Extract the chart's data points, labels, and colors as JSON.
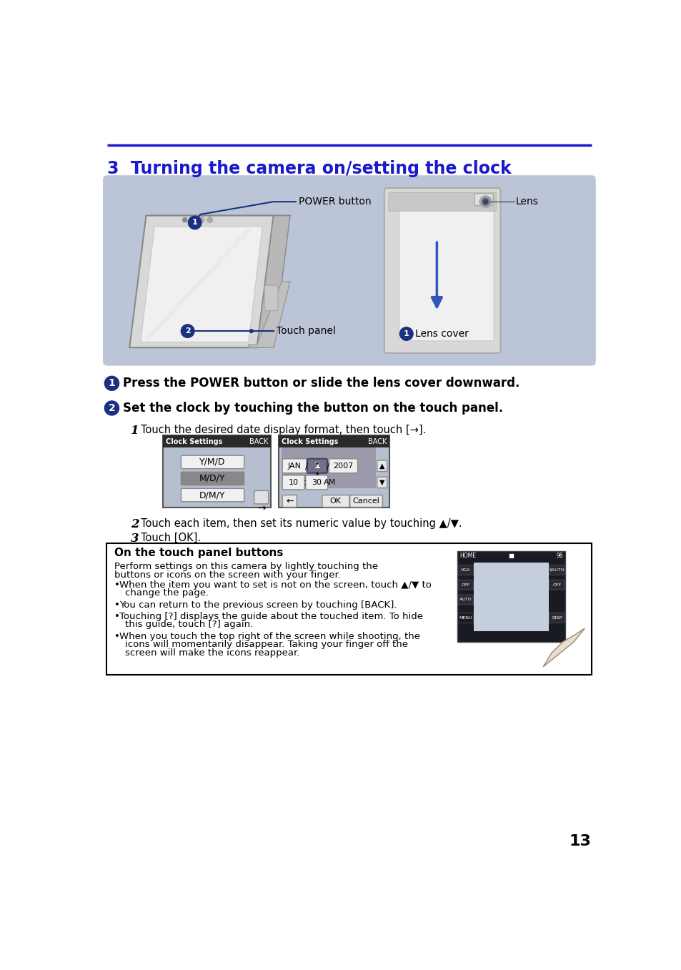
{
  "title": "3  Turning the camera on/setting the clock",
  "title_color": "#1a1acc",
  "title_fontsize": 17,
  "page_number": "13",
  "background_color": "#ffffff",
  "header_line_color": "#1a1acc",
  "diagram_bg": "#bcc5d8",
  "step1_text": "Press the POWER button or slide the lens cover downward.",
  "step2_text": "Set the clock by touching the button on the touch panel.",
  "sub1_text": "Touch the desired date display format, then touch [→].",
  "sub2_text": "Touch each item, then set its numeric value by touching ▲/▼.",
  "sub3_text": "Touch [OK].",
  "label_power": "POWER button",
  "label_touch": "Touch panel",
  "label_lens": "Lens",
  "label_lens_cover": "Lens cover",
  "box_title": "On the touch panel buttons",
  "box_text1": "Perform settings on this camera by lightly touching the",
  "box_text2": "buttons or icons on the screen with your finger.",
  "box_bullet1a": "When the item you want to set is not on the screen, touch ▲/▼ to",
  "box_bullet1b": "change the page.",
  "box_bullet2": "You can return to the previous screen by touching [BACK].",
  "box_bullet3a": "Touching [?] displays the guide about the touched item. To hide",
  "box_bullet3b": "this guide, touch [?] again.",
  "box_bullet4a": "When you touch the top right of the screen while shooting, the",
  "box_bullet4b": "icons will momentarily disappear. Taking your finger off the",
  "box_bullet4c": "screen will make the icons reappear."
}
